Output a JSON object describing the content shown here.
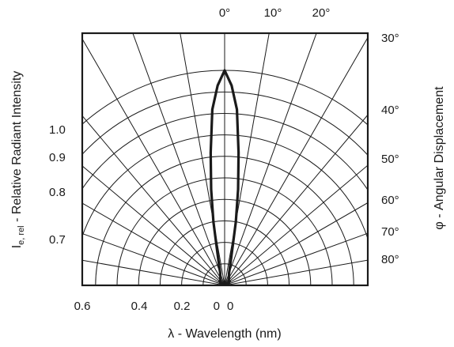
{
  "chart_data": {
    "type": "polar-radiation-pattern",
    "title": "",
    "ylabel_main": "I",
    "ylabel_sub": "e, rel",
    "ylabel_rest": " - Relative Radiant Intensity",
    "xlabel": "λ - Wavelength (nm)",
    "right_label": "φ - Angular Displacement",
    "grid": true,
    "radial_levels": [
      0.1,
      0.2,
      0.3,
      0.4,
      0.5,
      0.6,
      0.7,
      0.8,
      0.9,
      1.0
    ],
    "angle_step_deg": 10,
    "top_angle_ticks": [
      "0°",
      "10°",
      "20°"
    ],
    "right_angle_ticks": [
      "30°",
      "40°",
      "50°",
      "60°",
      "70°",
      "80°"
    ],
    "left_scale_ticks": [
      "1.0",
      "0.9",
      "0.8",
      "0.7"
    ],
    "bottom_ticks": [
      "0.6",
      "0.4",
      "0.2",
      "0",
      "0"
    ],
    "series": [
      {
        "angles_deg": [
          0,
          2,
          4,
          6,
          8,
          10,
          14,
          20,
          30,
          40,
          50,
          60,
          70,
          80,
          90
        ],
        "values": [
          1.0,
          0.93,
          0.82,
          0.62,
          0.45,
          0.3,
          0.12,
          0.06,
          0.04,
          0.03,
          0.03,
          0.02,
          0.02,
          0.01,
          0.0
        ]
      }
    ]
  }
}
